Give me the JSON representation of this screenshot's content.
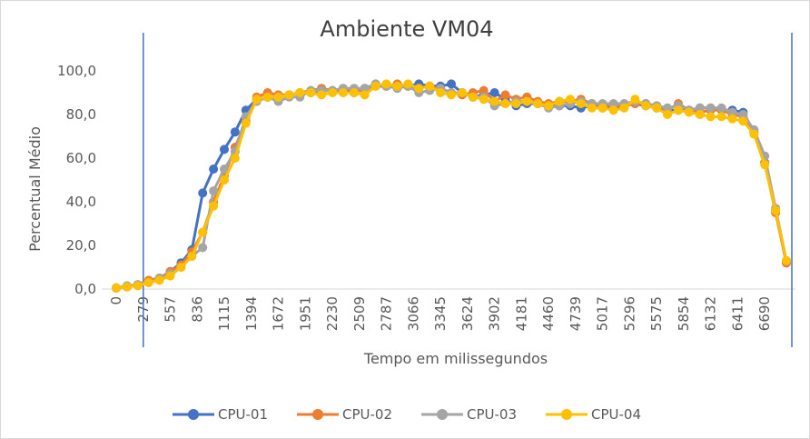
{
  "chart_data": {
    "type": "line",
    "title": "Ambiente VM04",
    "xlabel": "Tempo em milissegundos",
    "ylabel": "Percentual Médio",
    "ylim": [
      0,
      100
    ],
    "y_ticks": [
      "0,0",
      "20,0",
      "40,0",
      "60,0",
      "80,0",
      "100,0"
    ],
    "x_ticks": [
      "0",
      "279",
      "557",
      "836",
      "1115",
      "1394",
      "1672",
      "1951",
      "2230",
      "2509",
      "2787",
      "3066",
      "3345",
      "3624",
      "3902",
      "4181",
      "4460",
      "4739",
      "5017",
      "5296",
      "5575",
      "5854",
      "6132",
      "6411",
      "6690"
    ],
    "x_tick_values": [
      0,
      279,
      557,
      836,
      1115,
      1394,
      1672,
      1951,
      2230,
      2509,
      2787,
      3066,
      3345,
      3624,
      3902,
      4181,
      4460,
      4739,
      5017,
      5296,
      5575,
      5854,
      6132,
      6411,
      6690
    ],
    "reference_lines_x": [
      279,
      6969
    ],
    "grid": false,
    "legend_position": "bottom",
    "series": [
      {
        "name": "CPU-01",
        "color": "#4472C4",
        "x": [
          0,
          111,
          223,
          334,
          446,
          557,
          669,
          780,
          892,
          1003,
          1115,
          1226,
          1338,
          1449,
          1561,
          1672,
          1784,
          1895,
          2007,
          2118,
          2230,
          2341,
          2453,
          2564,
          2676,
          2787,
          2899,
          3010,
          3122,
          3233,
          3345,
          3456,
          3568,
          3679,
          3791,
          3902,
          4014,
          4125,
          4237,
          4348,
          4460,
          4571,
          4683,
          4794,
          4906,
          5017,
          5129,
          5240,
          5352,
          5463,
          5575,
          5686,
          5798,
          5909,
          6021,
          6132,
          6244,
          6355,
          6467,
          6578,
          6690,
          6801,
          6913
        ],
        "values": [
          0.5,
          1,
          2,
          3,
          5,
          8,
          12,
          18,
          44,
          55,
          64,
          72,
          82,
          87,
          88,
          88,
          89,
          90,
          90,
          91,
          91,
          91,
          90,
          92,
          93,
          93,
          93,
          93,
          94,
          93,
          93,
          94,
          90,
          88,
          89,
          90,
          87,
          84,
          85,
          85,
          84,
          84,
          84,
          83,
          84,
          83,
          83,
          84,
          85,
          84,
          83,
          82,
          82,
          82,
          83,
          83,
          82,
          82,
          81,
          72,
          58,
          36,
          12
        ]
      },
      {
        "name": "CPU-02",
        "color": "#ED7D31",
        "x": [
          0,
          111,
          223,
          334,
          446,
          557,
          669,
          780,
          892,
          1003,
          1115,
          1226,
          1338,
          1449,
          1561,
          1672,
          1784,
          1895,
          2007,
          2118,
          2230,
          2341,
          2453,
          2564,
          2676,
          2787,
          2899,
          3010,
          3122,
          3233,
          3345,
          3456,
          3568,
          3679,
          3791,
          3902,
          4014,
          4125,
          4237,
          4348,
          4460,
          4571,
          4683,
          4794,
          4906,
          5017,
          5129,
          5240,
          5352,
          5463,
          5575,
          5686,
          5798,
          5909,
          6021,
          6132,
          6244,
          6355,
          6467,
          6578,
          6690,
          6801,
          6913
        ],
        "values": [
          0.5,
          1,
          2,
          4,
          5,
          8,
          11,
          17,
          26,
          40,
          52,
          65,
          77,
          88,
          90,
          89,
          89,
          90,
          91,
          92,
          91,
          92,
          91,
          91,
          94,
          93,
          94,
          93,
          92,
          93,
          92,
          90,
          89,
          90,
          91,
          86,
          89,
          87,
          88,
          86,
          85,
          86,
          86,
          87,
          85,
          84,
          84,
          84,
          85,
          85,
          84,
          82,
          85,
          82,
          81,
          82,
          82,
          80,
          79,
          72,
          58,
          35,
          12
        ]
      },
      {
        "name": "CPU-03",
        "color": "#A5A5A5",
        "x": [
          0,
          111,
          223,
          334,
          446,
          557,
          669,
          780,
          892,
          1003,
          1115,
          1226,
          1338,
          1449,
          1561,
          1672,
          1784,
          1895,
          2007,
          2118,
          2230,
          2341,
          2453,
          2564,
          2676,
          2787,
          2899,
          3010,
          3122,
          3233,
          3345,
          3456,
          3568,
          3679,
          3791,
          3902,
          4014,
          4125,
          4237,
          4348,
          4460,
          4571,
          4683,
          4794,
          4906,
          5017,
          5129,
          5240,
          5352,
          5463,
          5575,
          5686,
          5798,
          5909,
          6021,
          6132,
          6244,
          6355,
          6467,
          6578,
          6690,
          6801,
          6913
        ],
        "values": [
          0.5,
          1.5,
          2,
          3,
          5,
          7,
          10,
          15,
          19,
          45,
          55,
          63,
          79,
          86,
          88,
          86,
          88,
          88,
          91,
          91,
          91,
          92,
          92,
          92,
          94,
          93,
          92,
          93,
          90,
          91,
          92,
          90,
          90,
          88,
          88,
          84,
          85,
          86,
          86,
          85,
          83,
          84,
          85,
          86,
          85,
          85,
          85,
          85,
          86,
          85,
          84,
          83,
          84,
          82,
          83,
          83,
          83,
          81,
          80,
          73,
          61,
          37,
          13
        ]
      },
      {
        "name": "CPU-04",
        "color": "#FFC000",
        "x": [
          0,
          111,
          223,
          334,
          446,
          557,
          669,
          780,
          892,
          1003,
          1115,
          1226,
          1338,
          1449,
          1561,
          1672,
          1784,
          1895,
          2007,
          2118,
          2230,
          2341,
          2453,
          2564,
          2676,
          2787,
          2899,
          3010,
          3122,
          3233,
          3345,
          3456,
          3568,
          3679,
          3791,
          3902,
          4014,
          4125,
          4237,
          4348,
          4460,
          4571,
          4683,
          4794,
          4906,
          5017,
          5129,
          5240,
          5352,
          5463,
          5575,
          5686,
          5798,
          5909,
          6021,
          6132,
          6244,
          6355,
          6467,
          6578,
          6690,
          6801,
          6913
        ],
        "values": [
          0.5,
          1,
          1.5,
          3,
          4,
          6,
          10,
          15,
          26,
          38,
          50,
          60,
          76,
          87,
          88,
          88,
          89,
          90,
          90,
          89,
          90,
          90,
          90,
          89,
          93,
          94,
          93,
          94,
          92,
          93,
          90,
          89,
          90,
          88,
          87,
          86,
          85,
          85,
          86,
          85,
          84,
          86,
          87,
          85,
          83,
          83,
          82,
          83,
          87,
          84,
          83,
          80,
          82,
          81,
          80,
          79,
          79,
          78,
          77,
          71,
          57,
          36,
          13
        ]
      }
    ]
  }
}
